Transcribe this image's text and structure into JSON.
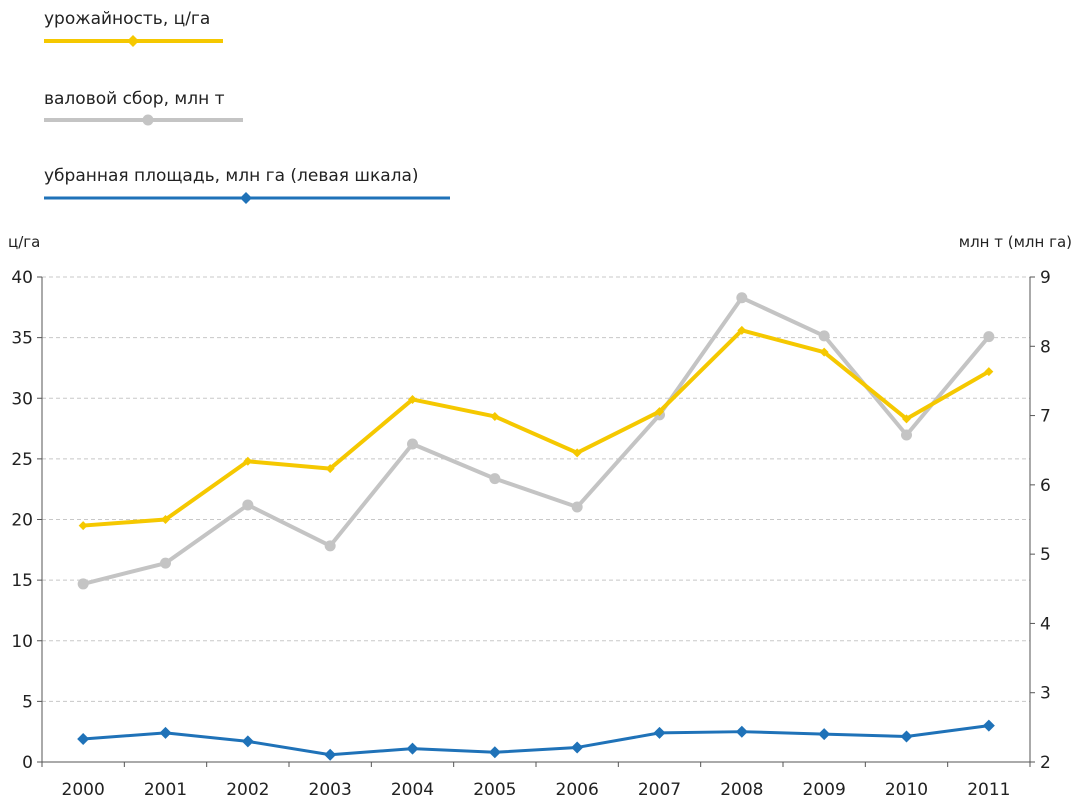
{
  "chart_data": {
    "type": "line",
    "categories": [
      "2000",
      "2001",
      "2002",
      "2003",
      "2004",
      "2005",
      "2006",
      "2007",
      "2008",
      "2009",
      "2010",
      "2011"
    ],
    "left_axis": {
      "unit_label": "ц/га",
      "ylim": [
        0,
        40
      ],
      "ticks": [
        "0",
        "5",
        "10",
        "15",
        "20",
        "25",
        "30",
        "35",
        "40"
      ]
    },
    "right_axis": {
      "unit_label": "млн т (млн га)",
      "ylim": [
        2,
        9
      ],
      "ticks": [
        "2",
        "3",
        "4",
        "5",
        "6",
        "7",
        "8",
        "9"
      ]
    },
    "grid": true,
    "legend_position": "top-left",
    "series": [
      {
        "name": "урожайность, ц/га",
        "axis": "left",
        "color": "#f5c800",
        "marker": "diamond",
        "values": [
          19.5,
          20.0,
          24.8,
          24.2,
          29.9,
          28.5,
          25.5,
          28.9,
          35.6,
          33.8,
          28.3,
          32.2
        ]
      },
      {
        "name": "валовой сбор, млн т",
        "axis": "right",
        "color": "#c4c4c4",
        "marker": "circle",
        "values": [
          4.57,
          4.87,
          5.71,
          5.12,
          6.59,
          6.09,
          5.68,
          7.01,
          8.7,
          8.15,
          6.72,
          8.14
        ]
      },
      {
        "name": "убранная площадь, млн га (левая шкала)",
        "axis": "left",
        "color": "#1f72b8",
        "marker": "diamond",
        "values": [
          1.9,
          2.4,
          1.7,
          0.6,
          1.1,
          0.8,
          1.2,
          2.4,
          2.5,
          2.3,
          2.1,
          3.0
        ]
      }
    ]
  }
}
